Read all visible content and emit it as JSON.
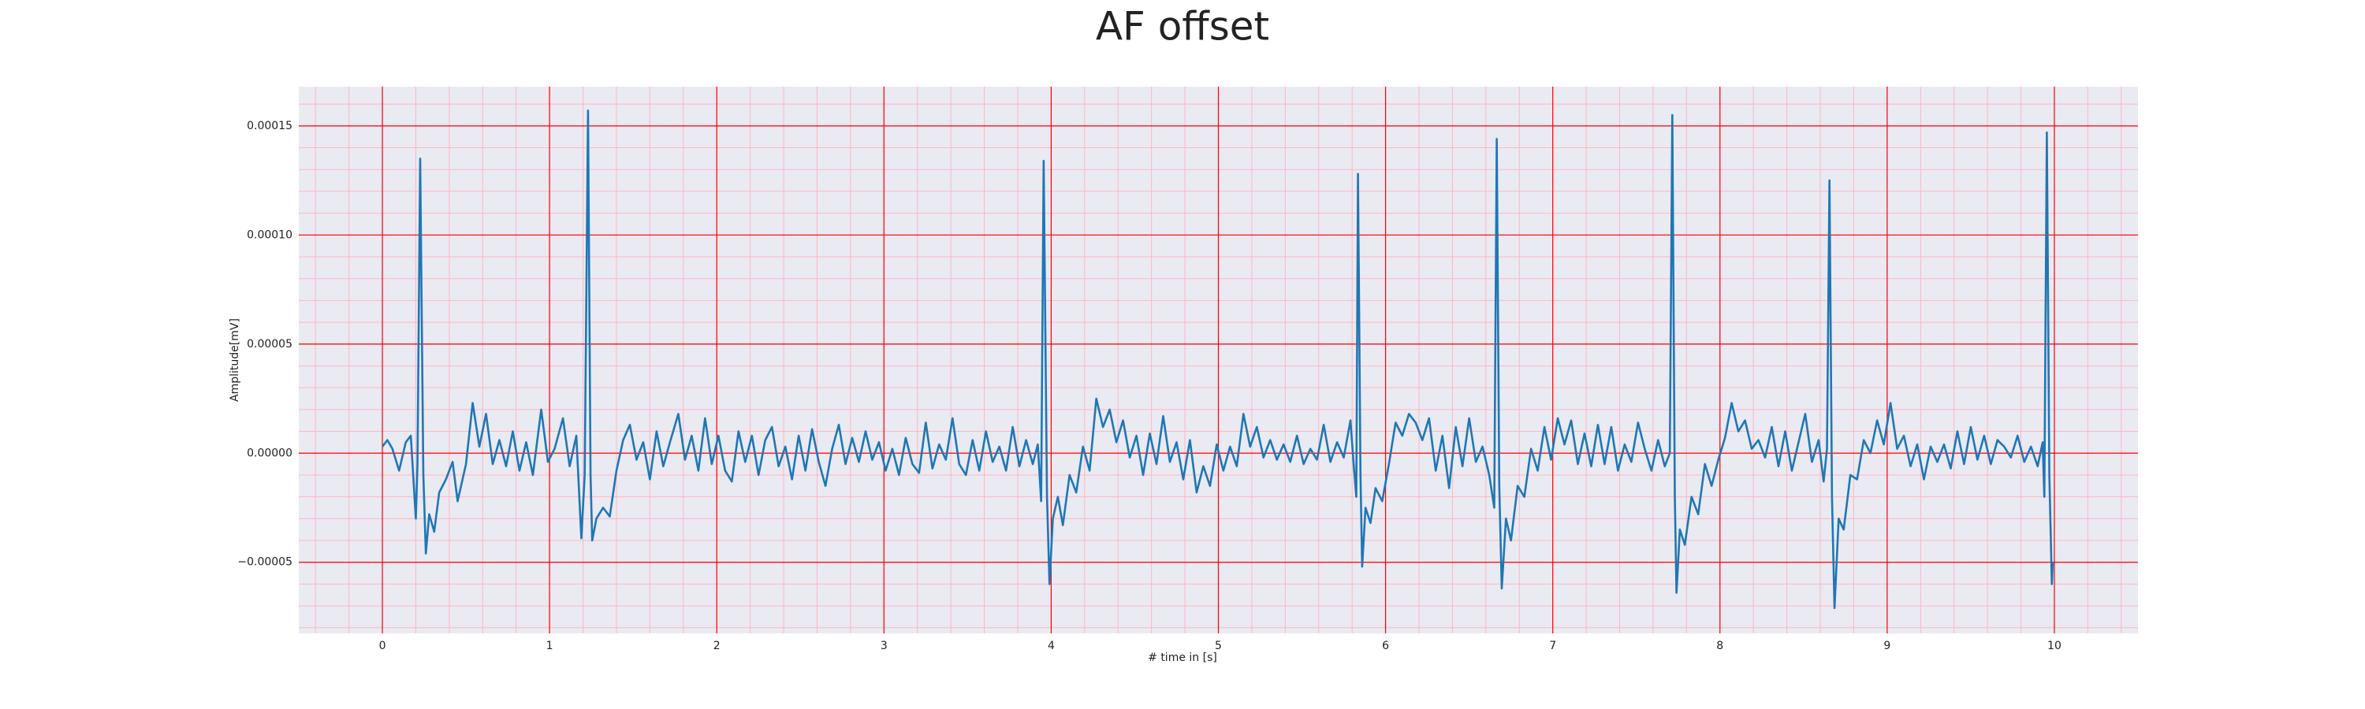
{
  "chart_data": {
    "type": "line",
    "title": "AF offset",
    "xlabel": "# time in [s]",
    "ylabel": "Amplitude[mV]",
    "xlim": [
      -0.5,
      10.5
    ],
    "ylim": [
      -8.26e-05,
      0.000168
    ],
    "xticks": [
      0,
      1,
      2,
      3,
      4,
      5,
      6,
      7,
      8,
      9,
      10
    ],
    "yticks": [
      {
        "value": -5e-05,
        "label": "−0.00005"
      },
      {
        "value": 0,
        "label": "0.00000"
      },
      {
        "value": 5e-05,
        "label": "0.00005"
      },
      {
        "value": 0.0001,
        "label": "0.00010"
      },
      {
        "value": 0.00015,
        "label": "0.00015"
      }
    ],
    "grid": true,
    "grid_color": "#ff0000",
    "minor_grid": true,
    "minor_grid_color": "#ffb6c1",
    "minor_divisions": 5,
    "background": "#eaeaf2",
    "x": [
      0.0,
      0.03,
      0.06,
      0.1,
      0.14,
      0.17,
      0.2,
      0.21,
      0.226,
      0.245,
      0.26,
      0.28,
      0.31,
      0.34,
      0.38,
      0.42,
      0.45,
      0.5,
      0.54,
      0.58,
      0.62,
      0.66,
      0.7,
      0.74,
      0.78,
      0.82,
      0.86,
      0.9,
      0.95,
      0.99,
      1.03,
      1.08,
      1.12,
      1.16,
      1.19,
      1.21,
      1.23,
      1.245,
      1.255,
      1.28,
      1.32,
      1.36,
      1.4,
      1.44,
      1.48,
      1.52,
      1.56,
      1.6,
      1.64,
      1.68,
      1.72,
      1.77,
      1.81,
      1.85,
      1.89,
      1.93,
      1.97,
      2.01,
      2.05,
      2.09,
      2.13,
      2.17,
      2.21,
      2.25,
      2.29,
      2.33,
      2.37,
      2.41,
      2.45,
      2.49,
      2.53,
      2.57,
      2.61,
      2.65,
      2.69,
      2.73,
      2.77,
      2.81,
      2.85,
      2.89,
      2.93,
      2.97,
      3.01,
      3.05,
      3.09,
      3.13,
      3.17,
      3.21,
      3.25,
      3.29,
      3.33,
      3.37,
      3.41,
      3.45,
      3.49,
      3.53,
      3.57,
      3.61,
      3.65,
      3.69,
      3.73,
      3.77,
      3.81,
      3.85,
      3.89,
      3.92,
      3.94,
      3.955,
      3.975,
      3.99,
      4.01,
      4.04,
      4.07,
      4.11,
      4.15,
      4.19,
      4.23,
      4.27,
      4.31,
      4.35,
      4.39,
      4.43,
      4.47,
      4.51,
      4.55,
      4.59,
      4.63,
      4.67,
      4.71,
      4.75,
      4.79,
      4.83,
      4.87,
      4.91,
      4.95,
      4.99,
      5.03,
      5.07,
      5.11,
      5.15,
      5.19,
      5.23,
      5.27,
      5.31,
      5.35,
      5.39,
      5.43,
      5.47,
      5.51,
      5.55,
      5.59,
      5.63,
      5.67,
      5.71,
      5.75,
      5.79,
      5.81,
      5.825,
      5.835,
      5.85,
      5.86,
      5.88,
      5.91,
      5.94,
      5.98,
      6.02,
      6.06,
      6.1,
      6.14,
      6.18,
      6.22,
      6.26,
      6.3,
      6.34,
      6.38,
      6.42,
      6.46,
      6.5,
      6.54,
      6.58,
      6.62,
      6.65,
      6.665,
      6.68,
      6.695,
      6.72,
      6.75,
      6.79,
      6.83,
      6.87,
      6.91,
      6.95,
      6.99,
      7.03,
      7.07,
      7.11,
      7.15,
      7.19,
      7.23,
      7.27,
      7.31,
      7.35,
      7.39,
      7.43,
      7.47,
      7.51,
      7.55,
      7.59,
      7.63,
      7.67,
      7.7,
      7.715,
      7.73,
      7.74,
      7.76,
      7.79,
      7.83,
      7.87,
      7.91,
      7.95,
      7.99,
      8.03,
      8.07,
      8.11,
      8.15,
      8.19,
      8.23,
      8.27,
      8.31,
      8.35,
      8.39,
      8.43,
      8.47,
      8.51,
      8.55,
      8.59,
      8.62,
      8.64,
      8.655,
      8.67,
      8.685,
      8.71,
      8.74,
      8.78,
      8.82,
      8.86,
      8.9,
      8.94,
      8.98,
      9.02,
      9.06,
      9.1,
      9.14,
      9.18,
      9.22,
      9.26,
      9.3,
      9.34,
      9.38,
      9.42,
      9.46,
      9.5,
      9.54,
      9.58,
      9.62,
      9.66,
      9.7,
      9.74,
      9.78,
      9.82,
      9.86,
      9.9,
      9.93,
      9.94,
      9.955,
      9.97,
      9.985,
      9.99
    ],
    "series": [
      {
        "color": "#1f77b4",
        "values": [
          3e-06,
          6e-06,
          2e-06,
          -8e-06,
          5e-06,
          8e-06,
          -3e-05,
          -5e-06,
          0.000135,
          -1e-05,
          -4.6e-05,
          -2.8e-05,
          -3.6e-05,
          -1.8e-05,
          -1.2e-05,
          -4e-06,
          -2.2e-05,
          -5e-06,
          2.3e-05,
          3e-06,
          1.8e-05,
          -5e-06,
          6e-06,
          -6e-06,
          1e-05,
          -8e-06,
          5e-06,
          -1e-05,
          2e-05,
          -4e-06,
          2e-06,
          1.6e-05,
          -6e-06,
          8e-06,
          -3.9e-05,
          -1e-05,
          0.000157,
          -1e-05,
          -4e-05,
          -3e-05,
          -2.5e-05,
          -2.9e-05,
          -8e-06,
          6e-06,
          1.3e-05,
          -3e-06,
          5e-06,
          -1.2e-05,
          1e-05,
          -6e-06,
          5e-06,
          1.8e-05,
          -3e-06,
          8e-06,
          -8e-06,
          1.6e-05,
          -5e-06,
          8e-06,
          -8e-06,
          -1.3e-05,
          1e-05,
          -4e-06,
          8e-06,
          -1e-05,
          6e-06,
          1.2e-05,
          -6e-06,
          3e-06,
          -1.2e-05,
          8e-06,
          -8e-06,
          1.1e-05,
          -4e-06,
          -1.5e-05,
          2e-06,
          1.3e-05,
          -5e-06,
          7e-06,
          -4e-06,
          1e-05,
          -3e-06,
          5e-06,
          -8e-06,
          2e-06,
          -1e-05,
          7e-06,
          -5e-06,
          -9e-06,
          1.4e-05,
          -7e-06,
          4e-06,
          -3e-06,
          1.6e-05,
          -5e-06,
          -1e-05,
          6e-06,
          -8e-06,
          1e-05,
          -4e-06,
          3e-06,
          -8e-06,
          1.2e-05,
          -6e-06,
          6e-06,
          -5e-06,
          4e-06,
          -2.2e-05,
          0.000134,
          -2e-05,
          -6e-05,
          -3e-05,
          -2e-05,
          -3.3e-05,
          -1e-05,
          -1.8e-05,
          3e-06,
          -8e-06,
          2.5e-05,
          1.2e-05,
          2e-05,
          5e-06,
          1.5e-05,
          -2e-06,
          8e-06,
          -1e-05,
          9e-06,
          -5e-06,
          1.7e-05,
          -4e-06,
          5e-06,
          -1.2e-05,
          6e-06,
          -1.8e-05,
          -6e-06,
          -1.5e-05,
          4e-06,
          -8e-06,
          3e-06,
          -6e-06,
          1.8e-05,
          3e-06,
          1.2e-05,
          -2e-06,
          6e-06,
          -3e-06,
          4e-06,
          -4e-06,
          8e-06,
          -5e-06,
          2e-06,
          -3e-06,
          1.3e-05,
          -4e-06,
          5e-06,
          -2e-06,
          1.5e-05,
          -6e-06,
          -2e-05,
          0.000128,
          -1e-05,
          -5.2e-05,
          -2.5e-05,
          -3.2e-05,
          -1.6e-05,
          -2.2e-05,
          -5e-06,
          1.4e-05,
          8e-06,
          1.8e-05,
          1.4e-05,
          6e-06,
          1.6e-05,
          -8e-06,
          8e-06,
          -1.6e-05,
          1.2e-05,
          -6e-06,
          1.6e-05,
          -4e-06,
          3e-06,
          -1e-05,
          -2.5e-05,
          0.000144,
          -1.5e-05,
          -6.2e-05,
          -3e-05,
          -4e-05,
          -1.5e-05,
          -2e-05,
          2e-06,
          -8e-06,
          1.2e-05,
          -3e-06,
          1.6e-05,
          4e-06,
          1.5e-05,
          -5e-06,
          9e-06,
          -6e-06,
          1.3e-05,
          -5e-06,
          1.2e-05,
          -8e-06,
          4e-06,
          -4e-06,
          1.4e-05,
          2e-06,
          -8e-06,
          6e-06,
          -6e-06,
          0,
          0.000155,
          -2e-05,
          -6.4e-05,
          -3.5e-05,
          -4.2e-05,
          -2e-05,
          -2.8e-05,
          -5e-06,
          -1.5e-05,
          -3e-06,
          7e-06,
          2.3e-05,
          1e-05,
          1.5e-05,
          2e-06,
          6e-06,
          -2e-06,
          1.2e-05,
          -6e-06,
          1e-05,
          -8e-06,
          5e-06,
          1.8e-05,
          -4e-06,
          6e-06,
          -1.3e-05,
          2e-06,
          0.000125,
          -2e-05,
          -7.1e-05,
          -3e-05,
          -3.5e-05,
          -1e-05,
          -1.2e-05,
          6e-06,
          0,
          1.5e-05,
          4e-06,
          2.3e-05,
          2e-06,
          8e-06,
          -6e-06,
          4e-06,
          -1.2e-05,
          3e-06,
          -4e-06,
          4e-06,
          -7e-06,
          1e-05,
          -5e-06,
          1.2e-05,
          -3e-06,
          8e-06,
          -5e-06,
          6e-06,
          3e-06,
          -2e-06,
          8e-06,
          -4e-06,
          3e-06,
          -6e-06,
          5e-06,
          -2e-05,
          0.000147,
          -1e-05,
          -6e-05,
          -5e-05
        ]
      }
    ]
  }
}
